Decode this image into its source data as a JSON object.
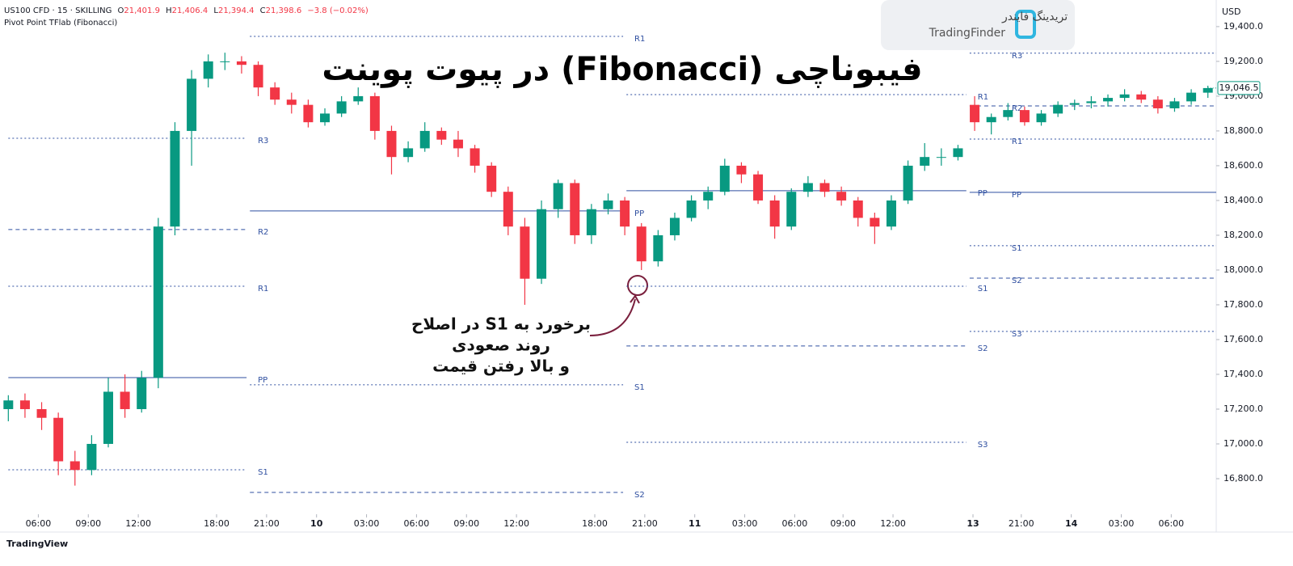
{
  "header": {
    "symbol": "US100 CFD · 15 · SKILLING",
    "ohlc": [
      {
        "k": "O",
        "v": "21,401.9"
      },
      {
        "k": "H",
        "v": "21,406.4"
      },
      {
        "k": "L",
        "v": "21,394.4"
      },
      {
        "k": "C",
        "v": "21,398.6"
      }
    ],
    "change": "−3.8 (−0.02%)",
    "indicator": "Pivot Point TFlab (Fibonacci)"
  },
  "logo": {
    "fa": "تریدینگ فایندر",
    "en": "TradingFinder"
  },
  "footer": "TradingView",
  "chart_data": {
    "type": "candlestick",
    "title": "فیبوناچی (Fibonacci) در پیوت پوینت",
    "annotation": [
      "برخورد  به S1 در اصلاح",
      "روند صعودی",
      "و بالا رفتن قیمت"
    ],
    "currency": "USD",
    "up_color": "#089981",
    "down_color": "#f23645",
    "open": [
      17200,
      17250,
      17200,
      17150,
      16900,
      16850,
      17000,
      17300,
      17200,
      17380,
      18250,
      18800,
      19100,
      19200,
      19200,
      19180,
      19050,
      18980,
      18950,
      18850,
      18900,
      18970,
      19000,
      18800,
      18650,
      18700,
      18800,
      18750,
      18700,
      18600,
      18450,
      18250,
      17950,
      18350,
      18500,
      18200,
      18350,
      18400,
      18250,
      18050,
      18200,
      18300,
      18400,
      18450,
      18600,
      18550,
      18400,
      18250,
      18450,
      18500,
      18450,
      18400,
      18300,
      18250,
      18400,
      18600,
      18650,
      18650,
      18950,
      18850,
      18880,
      18920,
      18850,
      18900,
      18950,
      18960,
      18970,
      18990,
      19010,
      18980,
      18930,
      18970,
      19020
    ],
    "high": [
      17280,
      17290,
      17240,
      17180,
      16960,
      17050,
      17380,
      17400,
      17420,
      18300,
      18850,
      19150,
      19240,
      19250,
      19230,
      19200,
      19080,
      19020,
      18980,
      18930,
      19000,
      19050,
      19020,
      18830,
      18740,
      18850,
      18820,
      18800,
      18720,
      18620,
      18480,
      18300,
      18400,
      18520,
      18520,
      18380,
      18440,
      18420,
      18270,
      18230,
      18330,
      18430,
      18480,
      18640,
      18620,
      18570,
      18430,
      18470,
      18540,
      18520,
      18480,
      18420,
      18330,
      18430,
      18630,
      18730,
      18700,
      18720,
      19000,
      18900,
      18960,
      18940,
      18920,
      18970,
      18980,
      19000,
      19010,
      19040,
      19030,
      19000,
      18990,
      19040,
      19060
    ],
    "low": [
      17130,
      17150,
      17080,
      16820,
      16760,
      16820,
      16980,
      17150,
      17180,
      17320,
      18200,
      18600,
      19050,
      19150,
      19130,
      19000,
      18950,
      18900,
      18820,
      18830,
      18880,
      18950,
      18750,
      18550,
      18620,
      18680,
      18720,
      18650,
      18560,
      18420,
      18200,
      17800,
      17920,
      18300,
      18150,
      18150,
      18320,
      18200,
      18000,
      18020,
      18170,
      18280,
      18350,
      18430,
      18500,
      18380,
      18180,
      18230,
      18420,
      18420,
      18370,
      18250,
      18150,
      18230,
      18380,
      18570,
      18600,
      18630,
      18800,
      18780,
      18860,
      18830,
      18830,
      18880,
      18920,
      18930,
      18940,
      18970,
      18960,
      18900,
      18910,
      18950,
      18990
    ],
    "close": [
      17250,
      17200,
      17150,
      16900,
      16850,
      17000,
      17300,
      17200,
      17380,
      18250,
      18800,
      19100,
      19200,
      19200,
      19180,
      19050,
      18980,
      18950,
      18850,
      18900,
      18970,
      19000,
      18800,
      18650,
      18700,
      18800,
      18750,
      18700,
      18600,
      18450,
      18250,
      17950,
      18350,
      18500,
      18200,
      18350,
      18400,
      18250,
      18050,
      18200,
      18300,
      18400,
      18450,
      18600,
      18550,
      18400,
      18250,
      18450,
      18500,
      18450,
      18400,
      18300,
      18250,
      18400,
      18600,
      18650,
      18650,
      18700,
      18850,
      18880,
      18920,
      18850,
      18900,
      18950,
      18960,
      18970,
      18990,
      19010,
      18980,
      18930,
      18970,
      19020,
      19046.5
    ],
    "xlim": [
      -0.5,
      72.5
    ],
    "xticks": [
      {
        "value": 1.8,
        "label": "06:00"
      },
      {
        "value": 4.8,
        "label": "09:00"
      },
      {
        "value": 7.8,
        "label": "12:00"
      },
      {
        "value": 12.5,
        "label": "18:00"
      },
      {
        "value": 15.5,
        "label": "21:00"
      },
      {
        "value": 18.5,
        "label": "10"
      },
      {
        "value": 21.5,
        "label": "03:00"
      },
      {
        "value": 24.5,
        "label": "06:00"
      },
      {
        "value": 27.5,
        "label": "09:00"
      },
      {
        "value": 30.5,
        "label": "12:00"
      },
      {
        "value": 35.2,
        "label": "18:00"
      },
      {
        "value": 38.2,
        "label": "21:00"
      },
      {
        "value": 41.2,
        "label": "11"
      },
      {
        "value": 44.2,
        "label": "03:00"
      },
      {
        "value": 47.2,
        "label": "06:00"
      },
      {
        "value": 50.1,
        "label": "09:00"
      },
      {
        "value": 53.1,
        "label": "12:00"
      },
      {
        "value": 57.9,
        "label": "13"
      },
      {
        "value": 60.8,
        "label": "21:00"
      },
      {
        "value": 63.8,
        "label": "14"
      },
      {
        "value": 66.8,
        "label": "03:00"
      },
      {
        "value": 69.8,
        "label": "06:00"
      }
    ],
    "ylim": [
      16600,
      19553
    ],
    "yticks": [
      {
        "value": 19400,
        "label": "19,400.0"
      },
      {
        "value": 19200,
        "label": "19,200.0"
      },
      {
        "value": 19000,
        "label": "19,000.0"
      },
      {
        "value": 18800,
        "label": "18,800.0"
      },
      {
        "value": 18600,
        "label": "18,600.0"
      },
      {
        "value": 18400,
        "label": "18,400.0"
      },
      {
        "value": 18200,
        "label": "18,200.0"
      },
      {
        "value": 18000,
        "label": "18,000.0"
      },
      {
        "value": 17800,
        "label": "17,800.0"
      },
      {
        "value": 17600,
        "label": "17,600.0"
      },
      {
        "value": 17400,
        "label": "17,400.0"
      },
      {
        "value": 17200,
        "label": "17,200.0"
      },
      {
        "value": 17000,
        "label": "17,000.0"
      },
      {
        "value": 16800,
        "label": "16,800.0"
      }
    ],
    "last_price": {
      "value": 19046.5,
      "label": "19,046.5"
    },
    "pivots": [
      {
        "start": 0,
        "end": 14.3,
        "levels": [
          {
            "name": "R3",
            "value": 18758
          },
          {
            "name": "R2",
            "value": 18233
          },
          {
            "name": "R1",
            "value": 17907
          },
          {
            "name": "PP",
            "value": 17381
          },
          {
            "name": "S1",
            "value": 16851
          }
        ]
      },
      {
        "start": 14.5,
        "end": 36.9,
        "levels": [
          {
            "name": "R1",
            "value": 19344
          },
          {
            "name": "PP",
            "value": 18340
          },
          {
            "name": "S1",
            "value": 17340
          },
          {
            "name": "S2",
            "value": 16721
          }
        ]
      },
      {
        "start": 37.1,
        "end": 57.5,
        "levels": [
          {
            "name": "R1",
            "value": 19009
          },
          {
            "name": "PP",
            "value": 18456
          },
          {
            "name": "S1",
            "value": 17907
          },
          {
            "name": "S2",
            "value": 17563
          },
          {
            "name": "S3",
            "value": 17009
          }
        ]
      },
      {
        "start": 57.7,
        "end": 72.5,
        "levels": [
          {
            "name": "R3",
            "value": 19247
          },
          {
            "name": "R2",
            "value": 18944
          },
          {
            "name": "R1",
            "value": 18753
          },
          {
            "name": "PP",
            "value": 18447
          },
          {
            "name": "S1",
            "value": 18140
          },
          {
            "name": "S2",
            "value": 17953
          },
          {
            "name": "S3",
            "value": 17647
          }
        ]
      }
    ]
  }
}
